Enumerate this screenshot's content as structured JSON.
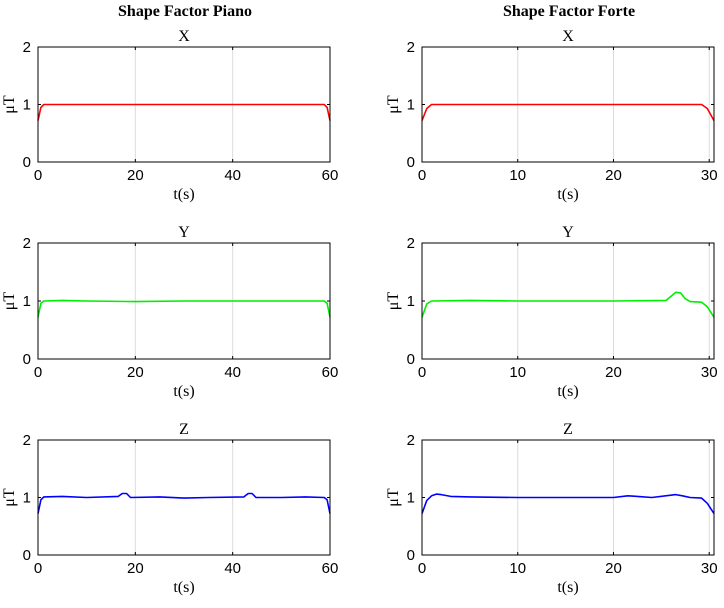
{
  "figure": {
    "column_titles": [
      "Shape Factor Piano",
      "Shape Factor Forte"
    ]
  },
  "chart_data": [
    {
      "type": "line",
      "column": 0,
      "row": 0,
      "title": "X",
      "xlabel": "t(s)",
      "ylabel": "μT",
      "xlim": [
        0,
        60
      ],
      "ylim": [
        0,
        2
      ],
      "xticks": [
        0,
        20,
        40,
        60
      ],
      "yticks": [
        0,
        1,
        2
      ],
      "grid": "x-only",
      "color": "#ff0000",
      "series": [
        {
          "x": [
            0,
            0.6,
            1.2,
            58.8,
            59.4,
            60
          ],
          "y": [
            0.72,
            0.95,
            1.0,
            1.0,
            0.95,
            0.72
          ]
        }
      ]
    },
    {
      "type": "line",
      "column": 1,
      "row": 0,
      "title": "X",
      "xlabel": "t(s)",
      "ylabel": "μT",
      "xlim": [
        0,
        30.5
      ],
      "ylim": [
        0,
        2
      ],
      "xticks": [
        0,
        10,
        20,
        30
      ],
      "yticks": [
        0,
        1,
        2
      ],
      "grid": "x-only",
      "color": "#ff0000",
      "series": [
        {
          "x": [
            0,
            0.5,
            1.0,
            29.2,
            29.8,
            30.5
          ],
          "y": [
            0.72,
            0.93,
            1.0,
            1.0,
            0.93,
            0.72
          ]
        }
      ]
    },
    {
      "type": "line",
      "column": 0,
      "row": 1,
      "title": "Y",
      "xlabel": "t(s)",
      "ylabel": "μT",
      "xlim": [
        0,
        60
      ],
      "ylim": [
        0,
        2
      ],
      "xticks": [
        0,
        20,
        40,
        60
      ],
      "yticks": [
        0,
        1,
        2
      ],
      "grid": "x-only",
      "color": "#00ee00",
      "series": [
        {
          "x": [
            0,
            0.6,
            1.2,
            5,
            10,
            20,
            30,
            40,
            50,
            58.8,
            59.4,
            60
          ],
          "y": [
            0.72,
            0.96,
            1.0,
            1.01,
            1.0,
            0.99,
            1.0,
            1.0,
            1.0,
            1.0,
            0.96,
            0.72
          ]
        }
      ]
    },
    {
      "type": "line",
      "column": 1,
      "row": 1,
      "title": "Y",
      "xlabel": "t(s)",
      "ylabel": "μT",
      "xlim": [
        0,
        30.5
      ],
      "ylim": [
        0,
        2
      ],
      "xticks": [
        0,
        10,
        20,
        30
      ],
      "yticks": [
        0,
        1,
        2
      ],
      "grid": "x-only",
      "color": "#00ee00",
      "series": [
        {
          "x": [
            0,
            0.5,
            1.0,
            5,
            10,
            15,
            20,
            25.5,
            26.0,
            26.5,
            27.0,
            27.5,
            28.0,
            29.2,
            29.8,
            30.5
          ],
          "y": [
            0.72,
            0.95,
            1.0,
            1.01,
            1.0,
            1.0,
            1.0,
            1.01,
            1.08,
            1.15,
            1.14,
            1.04,
            0.99,
            0.98,
            0.9,
            0.72
          ]
        }
      ]
    },
    {
      "type": "line",
      "column": 0,
      "row": 2,
      "title": "Z",
      "xlabel": "t(s)",
      "ylabel": "μT",
      "xlim": [
        0,
        60
      ],
      "ylim": [
        0,
        2
      ],
      "xticks": [
        0,
        20,
        40,
        60
      ],
      "yticks": [
        0,
        1,
        2
      ],
      "grid": "x-only",
      "color": "#0000ff",
      "series": [
        {
          "x": [
            0,
            0.6,
            1.2,
            5,
            10,
            16.5,
            17.3,
            18.2,
            19,
            25,
            30,
            35,
            42.3,
            43.2,
            44.0,
            44.8,
            50,
            55,
            58.8,
            59.4,
            60
          ],
          "y": [
            0.72,
            0.96,
            1.01,
            1.02,
            1.0,
            1.02,
            1.07,
            1.07,
            1.0,
            1.01,
            0.99,
            1.0,
            1.01,
            1.07,
            1.07,
            1.0,
            1.0,
            1.01,
            1.0,
            0.96,
            0.72
          ]
        }
      ]
    },
    {
      "type": "line",
      "column": 1,
      "row": 2,
      "title": "Z",
      "xlabel": "t(s)",
      "ylabel": "μT",
      "xlim": [
        0,
        30.5
      ],
      "ylim": [
        0,
        2
      ],
      "xticks": [
        0,
        10,
        20,
        30
      ],
      "yticks": [
        0,
        1,
        2
      ],
      "grid": "x-only",
      "color": "#0000ff",
      "series": [
        {
          "x": [
            0,
            0.5,
            1.0,
            1.5,
            2.0,
            3,
            5,
            10,
            15,
            20,
            21.5,
            22.5,
            24,
            26,
            26.5,
            27.2,
            28,
            29.2,
            29.8,
            30.5
          ],
          "y": [
            0.72,
            0.95,
            1.03,
            1.06,
            1.05,
            1.02,
            1.01,
            1.0,
            1.0,
            1.0,
            1.03,
            1.02,
            1.0,
            1.04,
            1.05,
            1.03,
            1.0,
            0.99,
            0.9,
            0.72
          ]
        }
      ]
    }
  ]
}
